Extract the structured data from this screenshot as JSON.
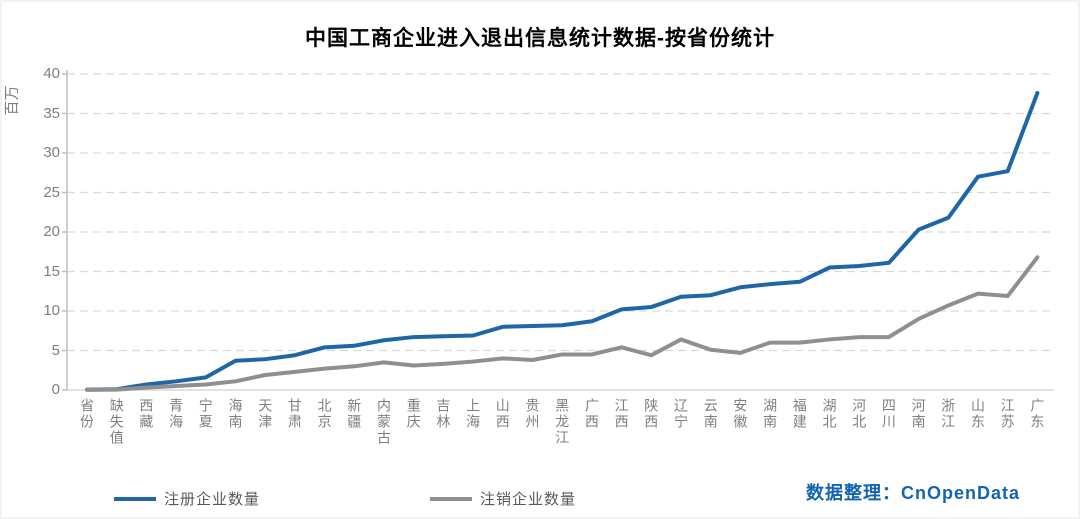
{
  "title": "中国工商企业进入退出信息统计数据-按省份统计",
  "y_axis": {
    "unit_label": "百万",
    "ticks": [
      0,
      5,
      10,
      15,
      20,
      25,
      30,
      35,
      40
    ]
  },
  "footer": {
    "label": "数据整理：CnOpenData"
  },
  "colors": {
    "registered_line": "#1F66A9",
    "deregistered_line": "#8F8F8F",
    "gridline": "#D9D9D9",
    "axis_line": "#BFBFBF",
    "tick_text": "#7F7F7F",
    "legend_text": "#595959",
    "footer_text": "#1565AE",
    "title_text": "#000000"
  },
  "chart_data": {
    "type": "line",
    "title": "中国工商企业进入退出信息统计数据-按省份统计",
    "xlabel": "",
    "ylabel": "百万",
    "ylim": [
      0,
      40
    ],
    "grid": true,
    "legend_position": "bottom-left",
    "categories": [
      "省份",
      "缺失值",
      "西藏",
      "青海",
      "宁夏",
      "海南",
      "天津",
      "甘肃",
      "北京",
      "新疆",
      "内蒙古",
      "重庆",
      "吉林",
      "上海",
      "山西",
      "贵州",
      "黑龙江",
      "广西",
      "江西",
      "陕西",
      "辽宁",
      "云南",
      "安徽",
      "湖南",
      "福建",
      "湖北",
      "河北",
      "四川",
      "河南",
      "浙江",
      "山东",
      "江苏",
      "广东"
    ],
    "series": [
      {
        "name": "注册企业数量",
        "color": "#1F66A9",
        "values": [
          0.05,
          0.1,
          0.7,
          1.1,
          1.6,
          3.7,
          3.9,
          4.4,
          5.4,
          5.6,
          6.3,
          6.7,
          6.8,
          6.9,
          8.0,
          8.1,
          8.2,
          8.7,
          10.2,
          10.5,
          11.8,
          12.0,
          13.0,
          13.4,
          13.7,
          15.5,
          15.7,
          16.1,
          20.3,
          21.8,
          27.0,
          27.7,
          37.6
        ]
      },
      {
        "name": "注销企业数量",
        "color": "#8F8F8F",
        "values": [
          0.02,
          0.05,
          0.3,
          0.5,
          0.7,
          1.1,
          1.9,
          2.3,
          2.7,
          3.0,
          3.5,
          3.1,
          3.3,
          3.6,
          4.0,
          3.8,
          4.5,
          4.5,
          5.4,
          4.4,
          6.4,
          5.1,
          4.7,
          6.0,
          6.0,
          6.4,
          6.7,
          6.7,
          9.0,
          10.7,
          12.2,
          11.9,
          16.8
        ]
      }
    ]
  }
}
